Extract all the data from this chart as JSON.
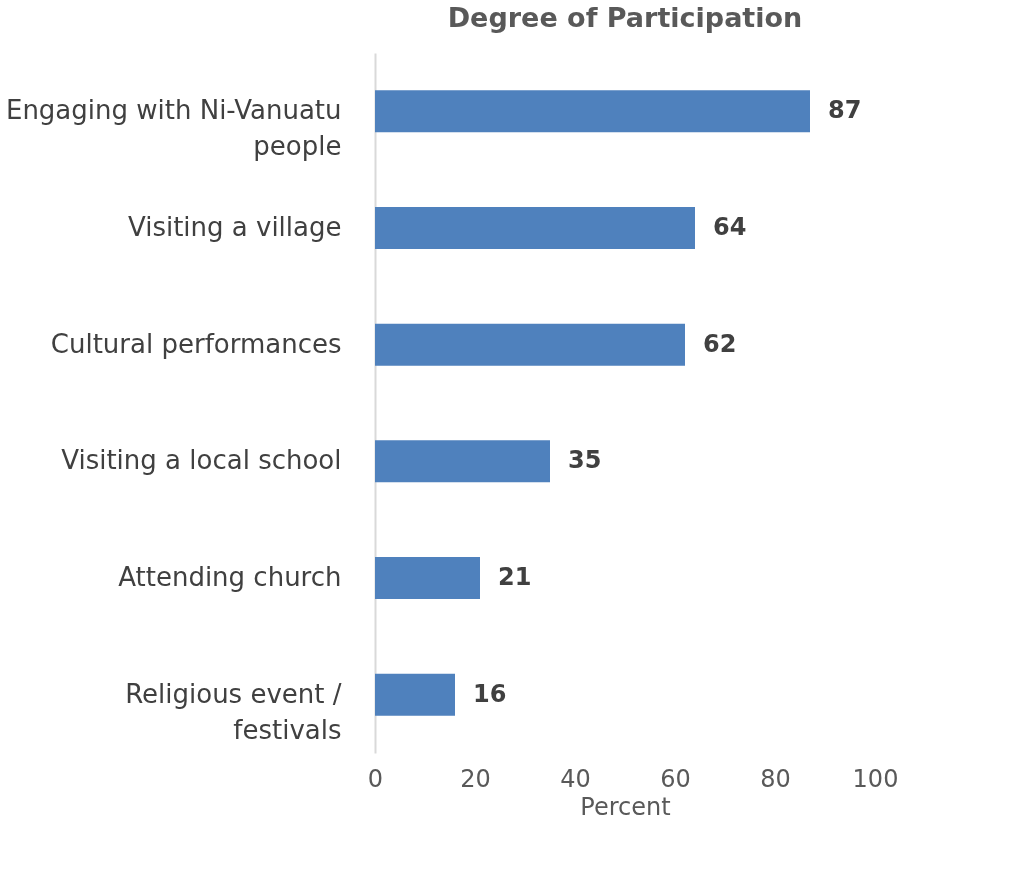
{
  "chart_data": {
    "type": "bar",
    "orientation": "horizontal",
    "title": "Degree of Participation",
    "xlabel": "Percent",
    "categories": [
      "Engaging with Ni-Vanuatu people",
      "Visiting a village",
      "Cultural performances",
      "Visiting a local school",
      "Attending church",
      "Religious event / festivals"
    ],
    "values": [
      87,
      64,
      62,
      35,
      21,
      16
    ],
    "color": "#4f81bd",
    "xlim": [
      0,
      100
    ],
    "xticks": [
      0,
      20,
      40,
      60,
      80,
      100
    ],
    "grid": false,
    "data_labels": true
  }
}
